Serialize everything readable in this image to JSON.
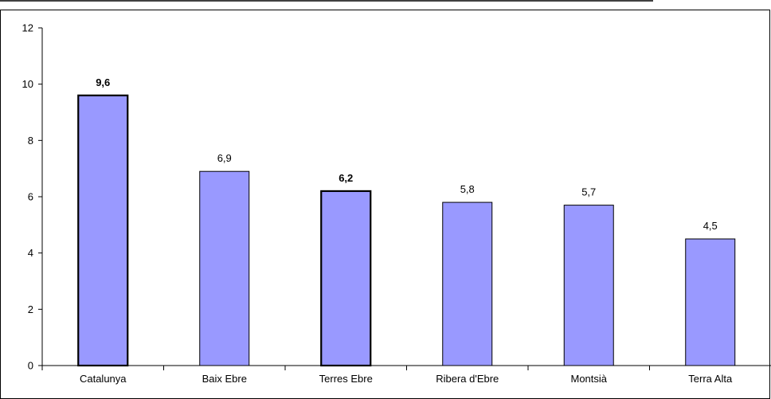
{
  "chart_data": {
    "type": "bar",
    "categories": [
      "Catalunya",
      "Baix Ebre",
      "Terres Ebre",
      "Ribera d'Ebre",
      "Montsià",
      "Terra Alta"
    ],
    "values": [
      9.6,
      6.9,
      6.2,
      5.8,
      5.7,
      4.5
    ],
    "value_labels": [
      "9,6",
      "6,9",
      "6,2",
      "5,8",
      "5,7",
      "4,5"
    ],
    "highlighted": [
      true,
      false,
      true,
      false,
      false,
      false
    ],
    "yticks": [
      0,
      2,
      4,
      6,
      8,
      10,
      12
    ],
    "ytick_labels": [
      "0",
      "2",
      "4",
      "6",
      "8",
      "10",
      "12"
    ],
    "ylim": [
      0,
      12
    ],
    "title": "",
    "xlabel": "",
    "ylabel": "",
    "grid": false,
    "legend": "none",
    "colors": {
      "bar_fill": "#9999ff",
      "bar_stroke": "#000000",
      "axis": "#000000",
      "background": "#ffffff"
    }
  }
}
